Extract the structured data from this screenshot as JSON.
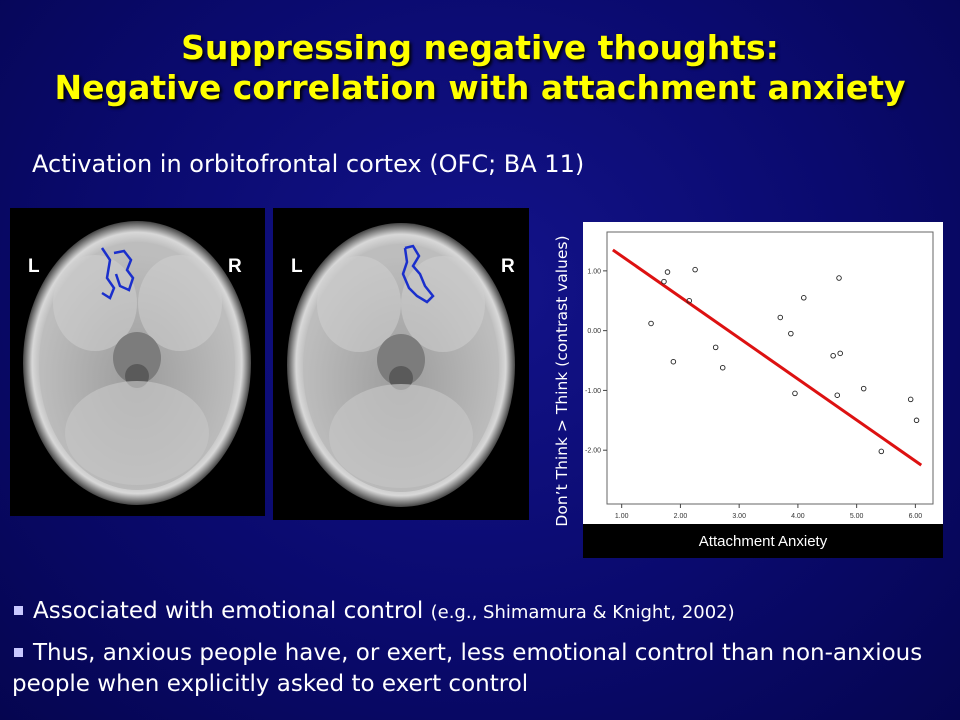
{
  "title": {
    "line1": "Suppressing negative thoughts:",
    "line2": "Negative correlation with attachment anxiety"
  },
  "subtitle": "Activation in orbitofrontal cortex (OFC; BA 11)",
  "brain_images": [
    {
      "left_label": "L",
      "right_label": "R"
    },
    {
      "left_label": "L",
      "right_label": "R"
    }
  ],
  "chart_data": {
    "type": "scatter",
    "xlabel": "Attachment Anxiety",
    "ylabel": "Don’t Think > Think (contrast values)",
    "xlim": [
      0.75,
      6.3
    ],
    "ylim": [
      -2.9,
      1.65
    ],
    "xticks": [
      "1.00",
      "2.00",
      "3.00",
      "4.00",
      "5.00",
      "6.00"
    ],
    "xtick_values": [
      1,
      2,
      3,
      4,
      5,
      6
    ],
    "yticks": [
      "1.00",
      "0.00",
      "-1.00",
      "-2.00"
    ],
    "ytick_values": [
      1,
      0,
      -1,
      -2
    ],
    "points": [
      {
        "x": 1.5,
        "y": 0.12
      },
      {
        "x": 1.72,
        "y": 0.82
      },
      {
        "x": 1.78,
        "y": 0.98
      },
      {
        "x": 1.88,
        "y": -0.52
      },
      {
        "x": 2.15,
        "y": 0.5
      },
      {
        "x": 2.25,
        "y": 1.02
      },
      {
        "x": 2.6,
        "y": -0.28
      },
      {
        "x": 2.72,
        "y": -0.62
      },
      {
        "x": 3.7,
        "y": 0.22
      },
      {
        "x": 3.88,
        "y": -0.05
      },
      {
        "x": 3.95,
        "y": -1.05
      },
      {
        "x": 4.1,
        "y": 0.55
      },
      {
        "x": 4.6,
        "y": -0.42
      },
      {
        "x": 4.67,
        "y": -1.08
      },
      {
        "x": 4.7,
        "y": 0.88
      },
      {
        "x": 4.72,
        "y": -0.38
      },
      {
        "x": 5.12,
        "y": -0.97
      },
      {
        "x": 5.42,
        "y": -2.02
      },
      {
        "x": 5.92,
        "y": -1.15
      },
      {
        "x": 6.02,
        "y": -1.5
      }
    ],
    "fit_line": {
      "x": [
        0.85,
        6.1
      ],
      "y": [
        1.35,
        -2.25
      ]
    },
    "colors": {
      "fit_line": "#dd1111",
      "points": "#222222"
    }
  },
  "bullets": [
    {
      "text": "Associated with emotional control ",
      "citation": "(e.g., Shimamura & Knight, 2002)"
    },
    {
      "text": "Thus, anxious people have, or exert, less emotional control than non-anxious people when explicitly asked to exert control"
    }
  ]
}
